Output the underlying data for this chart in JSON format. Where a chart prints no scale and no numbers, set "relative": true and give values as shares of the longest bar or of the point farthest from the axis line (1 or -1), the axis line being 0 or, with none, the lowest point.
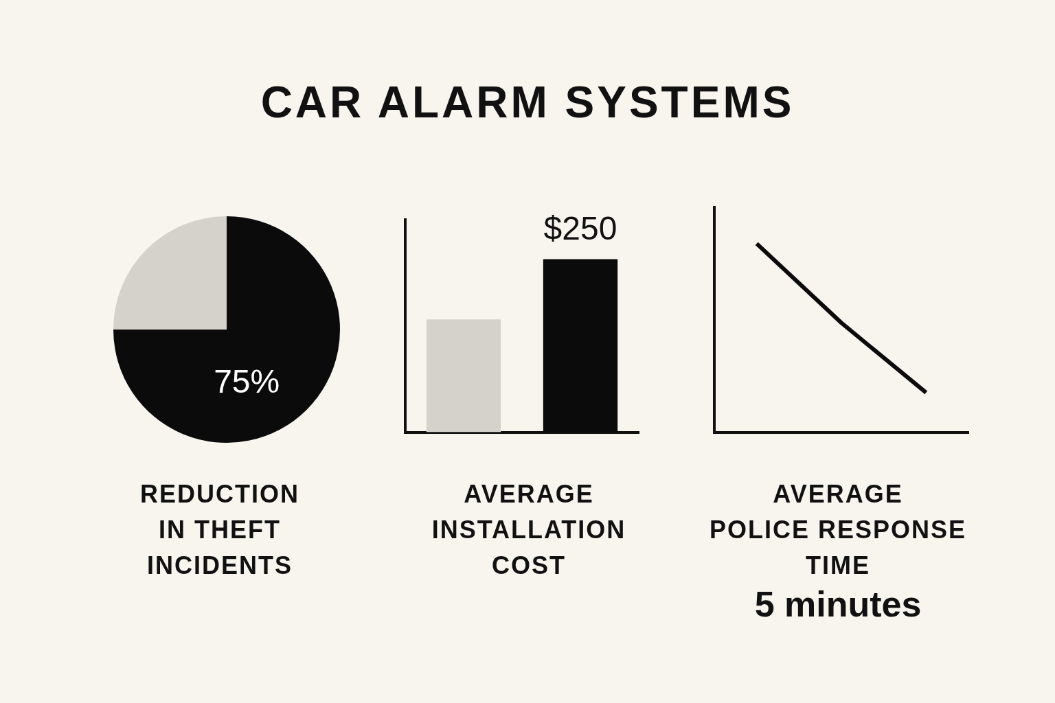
{
  "chart_data": [
    {
      "type": "pie",
      "title": "CAR ALARM SYSTEMS",
      "xlabel": "REDUCTION\nIN THEFT\nINCIDENTS",
      "categories": [
        null,
        null
      ],
      "values": [
        75,
        25
      ],
      "colors": [
        "#0b0b0b",
        "#d5d2cc"
      ],
      "value_labels": [
        "75%",
        null
      ],
      "legend": false
    },
    {
      "type": "bar",
      "xlabel": "AVERAGE\nINSTALLATION\nCOST",
      "categories": [
        null,
        null
      ],
      "values": [
        163,
        250
      ],
      "colors": [
        "#d5d2cc",
        "#0b0b0b"
      ],
      "value_labels": [
        null,
        "$250"
      ],
      "ylim": [
        0,
        307
      ],
      "grid": false,
      "legend": false
    },
    {
      "type": "line",
      "relative": true,
      "xlabel": "AVERAGE\nPOLICE RESPONSE\nTIME",
      "annotations": [
        "5 minutes"
      ],
      "categories": [
        null,
        null,
        null
      ],
      "series": [
        {
          "color": "#0b0b0b",
          "values": [
            1,
            0.58,
            0.21
          ]
        }
      ],
      "marker": "none",
      "grid": false,
      "legend": false
    }
  ]
}
